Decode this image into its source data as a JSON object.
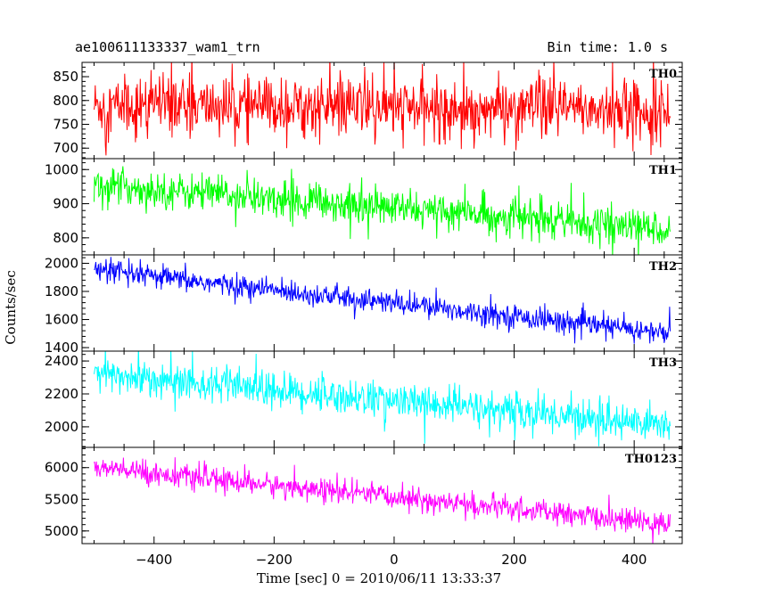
{
  "header": {
    "title": "ae100611133337_wam1_trn",
    "bin_time": "Bin time: 1.0 s"
  },
  "chart_data": {
    "type": "line",
    "title": "ae100611133337_wam1_trn",
    "subtitle": "Bin time: 1.0 s",
    "xlabel": "Time [sec] 0 = 2010/06/11 13:33:37",
    "ylabel": "Counts/sec",
    "xlim": [
      -520,
      480
    ],
    "x_ticks": [
      -400,
      -200,
      0,
      200,
      400
    ],
    "x_tick_labels": [
      "−400",
      "−200",
      "0",
      "200",
      "400"
    ],
    "grid": false,
    "panels": [
      {
        "name": "TH0",
        "color": "#ff0000",
        "ylim": [
          678,
          880
        ],
        "yticks": [
          700,
          750,
          800,
          850
        ],
        "x_range": [
          -500,
          460
        ],
        "y_start": 790,
        "y_end": 780,
        "noise_sd": 30,
        "spike_pct": 0.045
      },
      {
        "name": "TH1",
        "color": "#00ff00",
        "ylim": [
          750,
          1032
        ],
        "yticks": [
          800,
          900,
          1000
        ],
        "x_range": [
          -500,
          460
        ],
        "y_start": 955,
        "y_end": 825,
        "noise_sd": 26,
        "spike_pct": 0.03
      },
      {
        "name": "TH2",
        "color": "#0000ff",
        "ylim": [
          1375,
          2060
        ],
        "yticks": [
          1400,
          1600,
          1800,
          2000
        ],
        "x_range": [
          -500,
          460
        ],
        "y_start": 1950,
        "y_end": 1500,
        "noise_sd": 40,
        "spike_pct": 0.02
      },
      {
        "name": "TH3",
        "color": "#00ffff",
        "ylim": [
          1875,
          2460
        ],
        "yticks": [
          2000,
          2200,
          2400
        ],
        "x_range": [
          -500,
          460
        ],
        "y_start": 2320,
        "y_end": 2010,
        "noise_sd": 55,
        "spike_pct": 0.02
      },
      {
        "name": "TH0123",
        "color": "#ff00ff",
        "ylim": [
          4800,
          6320
        ],
        "yticks": [
          5000,
          5500,
          6000
        ],
        "x_range": [
          -500,
          460
        ],
        "y_start": 6000,
        "y_end": 5100,
        "noise_sd": 90,
        "spike_pct": 0.02
      }
    ]
  }
}
